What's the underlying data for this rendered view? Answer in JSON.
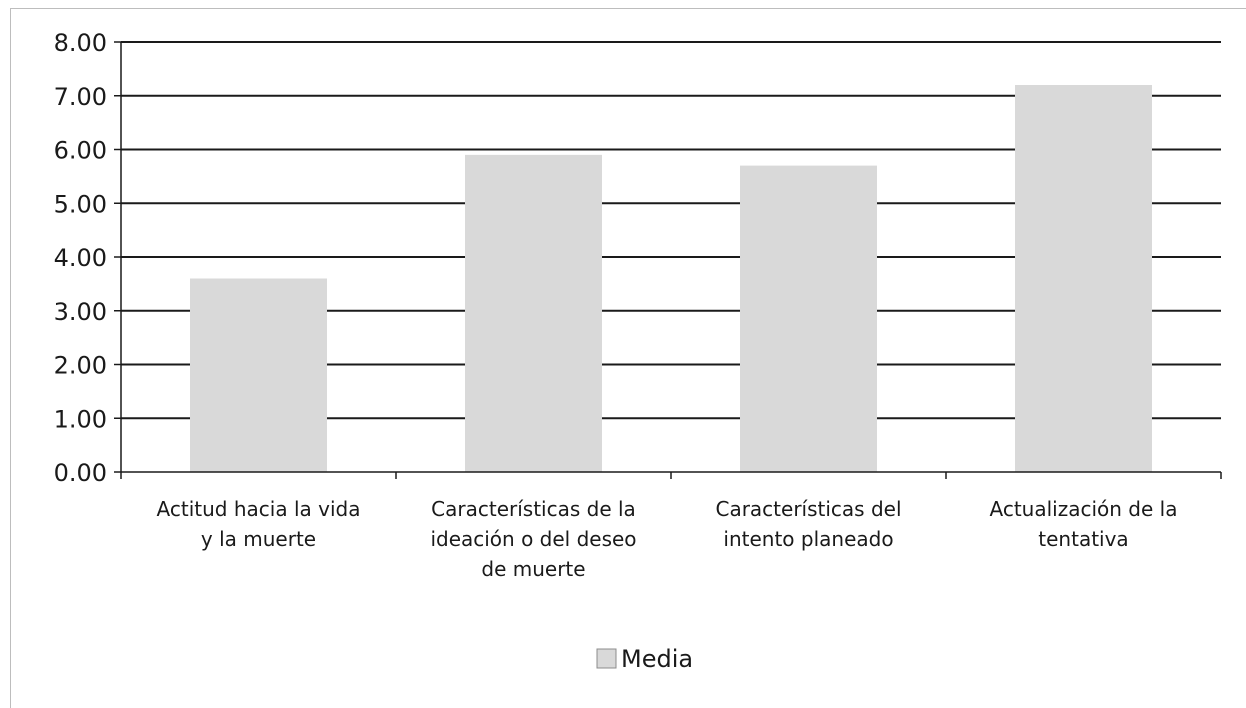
{
  "chart_data": {
    "type": "bar",
    "categories": [
      [
        "Actitud hacia la vida",
        "y la muerte"
      ],
      [
        "Características de la",
        "ideación o del deseo",
        "de muerte"
      ],
      [
        "Características del",
        "intento planeado"
      ],
      [
        "Actualización de la",
        "tentativa"
      ]
    ],
    "series": [
      {
        "name": "Media",
        "values": [
          3.6,
          5.9,
          5.7,
          7.2
        ],
        "color": "#d9d9d9"
      }
    ],
    "ylim": [
      0,
      8
    ],
    "yticks": [
      "0.00",
      "1.00",
      "2.00",
      "3.00",
      "4.00",
      "5.00",
      "6.00",
      "7.00",
      "8.00"
    ],
    "grid": true,
    "legend_position": "bottom"
  }
}
